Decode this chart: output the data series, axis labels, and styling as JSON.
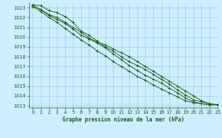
{
  "title": "Graphe pression niveau de la mer (hPa)",
  "xlim": [
    -0.5,
    23
  ],
  "ylim": [
    1012.8,
    1023.5
  ],
  "yticks": [
    1013,
    1014,
    1015,
    1016,
    1017,
    1018,
    1019,
    1020,
    1021,
    1022,
    1023
  ],
  "xticks": [
    0,
    1,
    2,
    3,
    4,
    5,
    6,
    7,
    8,
    9,
    10,
    11,
    12,
    13,
    14,
    15,
    16,
    17,
    18,
    19,
    20,
    21,
    22,
    23
  ],
  "bg_color": "#cceeff",
  "grid_color": "#99cccc",
  "line_color": "#1a5c1a",
  "series": [
    [
      1023.2,
      1022.8,
      1022.3,
      1022.0,
      1021.5,
      1021.0,
      1020.5,
      1019.9,
      1019.5,
      1019.2,
      1018.8,
      1018.4,
      1018.0,
      1017.5,
      1017.0,
      1016.5,
      1016.0,
      1015.5,
      1015.0,
      1014.5,
      1014.0,
      1013.5,
      1013.2,
      1013.1
    ],
    [
      1023.2,
      1022.8,
      1022.2,
      1021.8,
      1021.4,
      1020.8,
      1020.2,
      1019.8,
      1019.4,
      1018.9,
      1018.3,
      1017.7,
      1017.1,
      1016.6,
      1016.1,
      1015.7,
      1015.3,
      1014.8,
      1014.3,
      1013.8,
      1013.4,
      1013.2,
      1013.1,
      1013.1
    ],
    [
      1023.3,
      1023.2,
      1022.7,
      1022.5,
      1022.1,
      1021.5,
      1020.6,
      1020.2,
      1019.6,
      1019.0,
      1018.6,
      1018.0,
      1017.5,
      1017.1,
      1016.7,
      1016.2,
      1015.7,
      1015.2,
      1014.6,
      1014.1,
      1013.6,
      1013.4,
      1013.2,
      1013.1
    ],
    [
      1023.1,
      1022.6,
      1022.0,
      1021.5,
      1020.9,
      1020.3,
      1019.7,
      1019.2,
      1018.6,
      1018.1,
      1017.5,
      1017.0,
      1016.5,
      1016.0,
      1015.6,
      1015.1,
      1014.7,
      1014.3,
      1013.9,
      1013.5,
      1013.3,
      1013.2,
      1013.1,
      1013.1
    ]
  ]
}
